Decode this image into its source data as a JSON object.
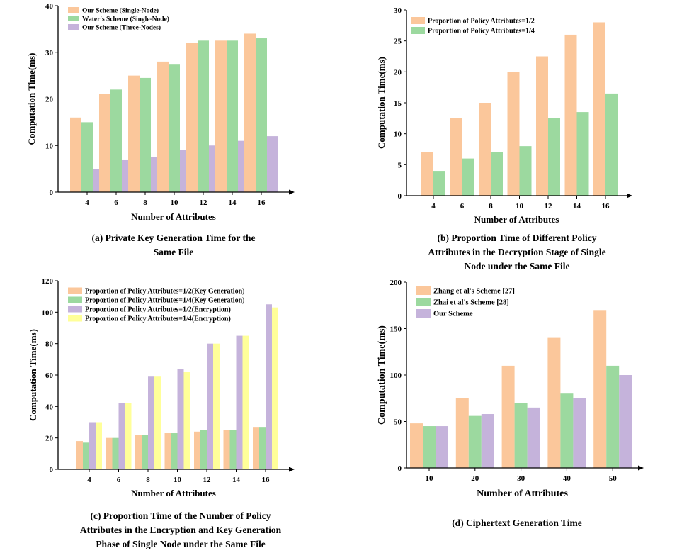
{
  "colors": {
    "orange": "#FBC79B",
    "green": "#9CD99F",
    "purple": "#C5B3DB",
    "yellow": "#FFFF99",
    "axis": "#000000"
  },
  "chart_data": [
    {
      "id": "a",
      "type": "bar",
      "ylabel": "Computation Time(ms)",
      "xlabel": "Number of Attributes",
      "caption": "(a) Private Key Generation Time for the\nSame File",
      "categories": [
        "4",
        "6",
        "8",
        "10",
        "12",
        "14",
        "16"
      ],
      "ylim": [
        0,
        40
      ],
      "yticks": [
        0,
        10,
        20,
        30,
        40
      ],
      "series": [
        {
          "name": "Our Scheme (Single-Node)",
          "color": "#FBC79B",
          "values": [
            16,
            21,
            25,
            28,
            32,
            32.5,
            34
          ]
        },
        {
          "name": "Water's Scheme (Single-Node)",
          "color": "#9CD99F",
          "values": [
            15,
            22,
            24.5,
            27.5,
            32.5,
            32.5,
            33
          ]
        },
        {
          "name": "Our Scheme (Three-Nodes)",
          "color": "#C5B3DB",
          "values": [
            5,
            7,
            7.5,
            9,
            10,
            11,
            12
          ]
        }
      ],
      "legend": "top-left",
      "grid": false
    },
    {
      "id": "b",
      "type": "bar",
      "ylabel": "Computation Time(ms)",
      "xlabel": "Number of Attributes",
      "caption": "(b) Proportion Time of Different Policy\nAttributes in the Decryption Stage of  Single\nNode under the Same File",
      "categories": [
        "4",
        "6",
        "8",
        "10",
        "12",
        "14",
        "16"
      ],
      "ylim": [
        0,
        30
      ],
      "yticks": [
        0,
        5,
        10,
        15,
        20,
        25,
        30
      ],
      "series": [
        {
          "name": "Proportion of Policy Attributes=1/2",
          "color": "#FBC79B",
          "values": [
            7,
            12.5,
            15,
            20,
            22.5,
            26,
            28
          ]
        },
        {
          "name": "Proportion of Policy Attributes=1/4",
          "color": "#9CD99F",
          "values": [
            4,
            6,
            7,
            8,
            12.5,
            13.5,
            16.5
          ]
        }
      ],
      "legend": "top-left",
      "grid": false
    },
    {
      "id": "c",
      "type": "bar",
      "ylabel": "Computation Time(ms)",
      "xlabel": "Number of  Attributes",
      "caption": "(c) Proportion Time of the Number of Policy\nAttributes in the Encryption and Key Generation\nPhase of  Single Node under the Same File",
      "categories": [
        "4",
        "6",
        "8",
        "10",
        "12",
        "14",
        "16"
      ],
      "ylim": [
        0,
        120
      ],
      "yticks": [
        0,
        20,
        40,
        60,
        80,
        100,
        120
      ],
      "series": [
        {
          "name": "Proportion of Policy Attributes=1/2(Key Generation)",
          "color": "#FBC79B",
          "values": [
            18,
            20,
            22,
            23,
            24,
            25,
            27
          ]
        },
        {
          "name": "Proportion of Policy Attributes=1/4(Key Generation)",
          "color": "#9CD99F",
          "values": [
            17,
            20,
            22,
            23,
            25,
            25,
            27
          ]
        },
        {
          "name": "Proportion of Policy Attributes=1/2(Encryption)",
          "color": "#C5B3DB",
          "values": [
            30,
            42,
            59,
            64,
            80,
            85,
            105
          ]
        },
        {
          "name": "Proportion of Policy Attributes=1/4(Encryption)",
          "color": "#FFFF99",
          "values": [
            30,
            42,
            59,
            62,
            80,
            85,
            103
          ]
        }
      ],
      "legend": "top-left",
      "grid": false
    },
    {
      "id": "d",
      "type": "bar",
      "ylabel": "Computation Time(ms)",
      "xlabel": "Number of  Attributes",
      "caption": "(d) Ciphertext Generation Time",
      "categories": [
        "10",
        "20",
        "30",
        "40",
        "50"
      ],
      "ylim": [
        0,
        200
      ],
      "yticks": [
        0,
        50,
        100,
        150,
        200
      ],
      "series": [
        {
          "name": "Zhang et al's Scheme [27]",
          "color": "#FBC79B",
          "values": [
            48,
            75,
            110,
            140,
            170
          ]
        },
        {
          "name": "Zhai et al's Scheme [28]",
          "color": "#9CD99F",
          "values": [
            45,
            56,
            70,
            80,
            110
          ]
        },
        {
          "name": "Our Scheme",
          "color": "#C5B3DB",
          "values": [
            45,
            58,
            65,
            75,
            100
          ]
        }
      ],
      "legend": "top-left",
      "grid": false
    }
  ]
}
